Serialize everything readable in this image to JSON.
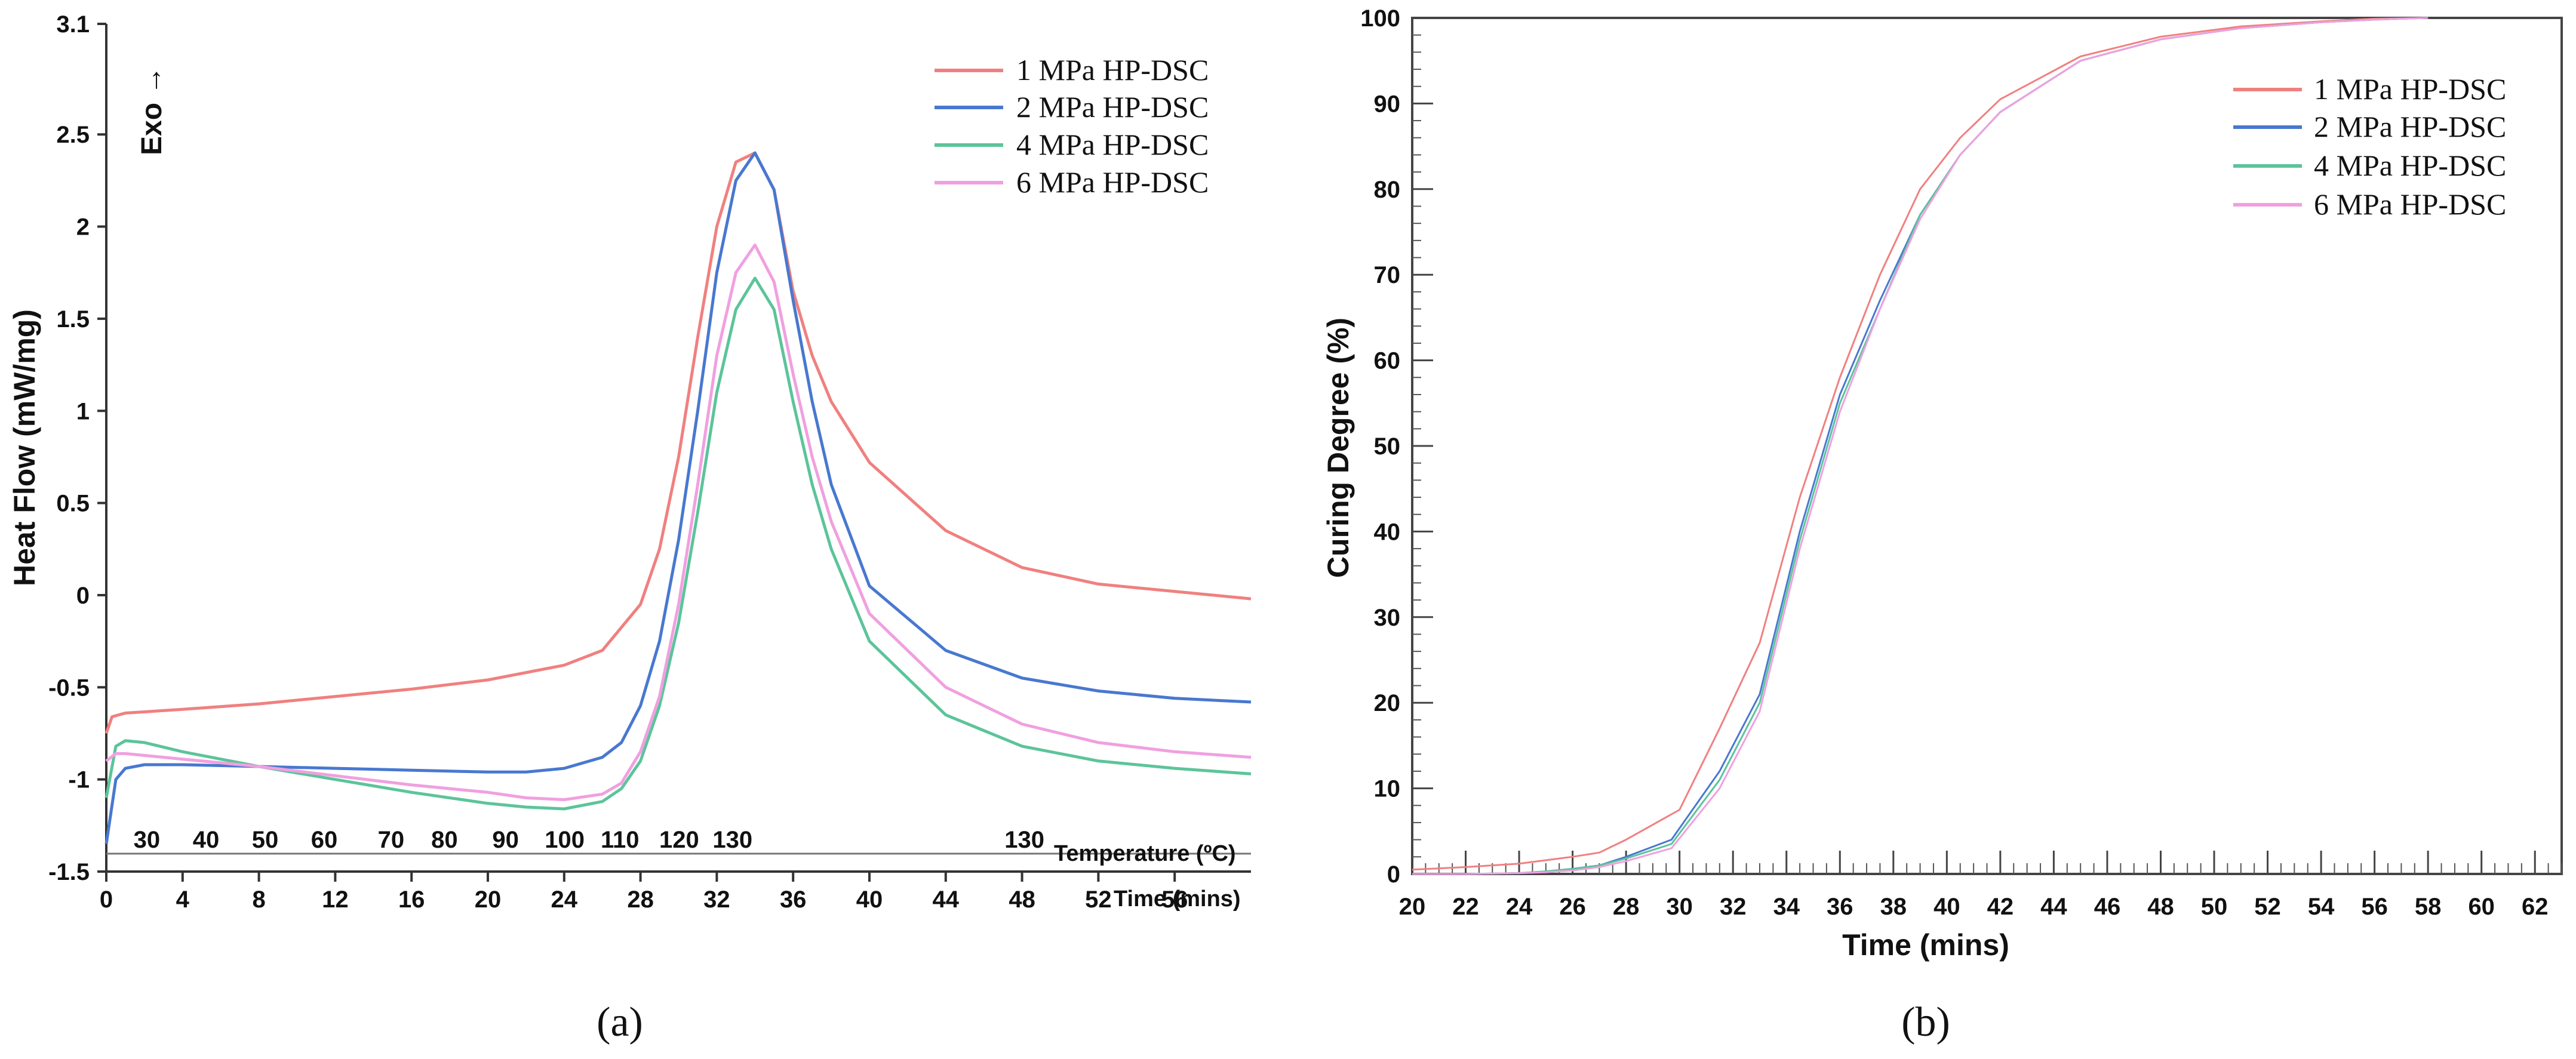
{
  "chart_data": [
    {
      "type": "line",
      "panel": "a",
      "caption": "(a)",
      "ylabel": "Heat  Flow (mW/mg)",
      "xlabel": "Time (mins)",
      "secondary_xlabel": "Temperature (ºC)",
      "exo_label": "Exo →",
      "xlim": [
        0,
        60
      ],
      "ylim": [
        -1.5,
        3.1
      ],
      "x_ticks": [
        0,
        4,
        8,
        12,
        16,
        20,
        24,
        28,
        32,
        36,
        40,
        44,
        48,
        52,
        56
      ],
      "x_tick_labels": [
        "0",
        "4",
        "8",
        "12",
        "16",
        "20",
        "24",
        "28",
        "32",
        "36",
        "40",
        "44",
        "48",
        "52",
        "56"
      ],
      "y_ticks": [
        -1.5,
        -1,
        -0.5,
        0,
        0.5,
        1,
        1.5,
        2,
        2.5,
        3.1
      ],
      "y_tick_labels": [
        "-1.5",
        "-1",
        "-0.5",
        "0",
        "0.5",
        "1",
        "1.5",
        "2",
        "2.5",
        "3.1"
      ],
      "temperature_ticks": [
        {
          "time": 1.5,
          "label": "30"
        },
        {
          "time": 4.6,
          "label": "40"
        },
        {
          "time": 7.7,
          "label": "50"
        },
        {
          "time": 10.8,
          "label": "60"
        },
        {
          "time": 14.3,
          "label": "70"
        },
        {
          "time": 17.1,
          "label": "80"
        },
        {
          "time": 20.3,
          "label": "90"
        },
        {
          "time": 23.4,
          "label": "100"
        },
        {
          "time": 26.3,
          "label": "110"
        },
        {
          "time": 29.4,
          "label": "120"
        },
        {
          "time": 32.2,
          "label": "130"
        },
        {
          "time": 47.5,
          "label": "130"
        }
      ],
      "series": [
        {
          "name": "1 MPa HP-DSC",
          "color": "#f08080",
          "x": [
            0,
            0.3,
            1,
            4,
            8,
            12,
            16,
            20,
            24,
            26,
            28,
            29,
            30,
            31,
            32,
            33,
            34,
            35,
            36,
            37,
            38,
            40,
            44,
            48,
            52,
            56,
            60
          ],
          "y": [
            -0.75,
            -0.66,
            -0.64,
            -0.62,
            -0.59,
            -0.55,
            -0.51,
            -0.46,
            -0.38,
            -0.3,
            -0.05,
            0.25,
            0.75,
            1.4,
            2.0,
            2.35,
            2.4,
            2.2,
            1.65,
            1.3,
            1.05,
            0.72,
            0.35,
            0.15,
            0.06,
            0.02,
            -0.02
          ]
        },
        {
          "name": "2 MPa HP-DSC",
          "color": "#4878d0",
          "x": [
            0,
            0.5,
            1,
            2,
            4,
            8,
            12,
            16,
            20,
            22,
            24,
            26,
            27,
            28,
            29,
            30,
            31,
            32,
            33,
            34,
            35,
            36,
            37,
            38,
            40,
            44,
            48,
            52,
            56,
            60
          ],
          "y": [
            -1.35,
            -1.0,
            -0.94,
            -0.92,
            -0.92,
            -0.93,
            -0.94,
            -0.95,
            -0.96,
            -0.96,
            -0.94,
            -0.88,
            -0.8,
            -0.6,
            -0.25,
            0.3,
            1.0,
            1.75,
            2.25,
            2.4,
            2.2,
            1.6,
            1.05,
            0.6,
            0.05,
            -0.3,
            -0.45,
            -0.52,
            -0.56,
            -0.58
          ]
        },
        {
          "name": "4 MPa HP-DSC",
          "color": "#5cc49a",
          "x": [
            0,
            0.5,
            1,
            2,
            4,
            8,
            12,
            16,
            20,
            22,
            24,
            26,
            27,
            28,
            29,
            30,
            31,
            32,
            33,
            34,
            35,
            36,
            37,
            38,
            40,
            44,
            48,
            52,
            56,
            60
          ],
          "y": [
            -1.1,
            -0.82,
            -0.79,
            -0.8,
            -0.85,
            -0.93,
            -1.0,
            -1.07,
            -1.13,
            -1.15,
            -1.16,
            -1.12,
            -1.05,
            -0.9,
            -0.6,
            -0.15,
            0.45,
            1.1,
            1.55,
            1.72,
            1.55,
            1.05,
            0.6,
            0.25,
            -0.25,
            -0.65,
            -0.82,
            -0.9,
            -0.94,
            -0.97
          ]
        },
        {
          "name": "6 MPa HP-DSC",
          "color": "#f0a0e0",
          "x": [
            0,
            0.5,
            1,
            2,
            4,
            8,
            12,
            16,
            20,
            22,
            24,
            26,
            27,
            28,
            29,
            30,
            31,
            32,
            33,
            34,
            35,
            36,
            37,
            38,
            40,
            44,
            48,
            52,
            56,
            60
          ],
          "y": [
            -0.9,
            -0.86,
            -0.86,
            -0.87,
            -0.89,
            -0.93,
            -0.98,
            -1.03,
            -1.07,
            -1.1,
            -1.11,
            -1.08,
            -1.02,
            -0.85,
            -0.55,
            -0.05,
            0.6,
            1.3,
            1.75,
            1.9,
            1.7,
            1.2,
            0.75,
            0.4,
            -0.1,
            -0.5,
            -0.7,
            -0.8,
            -0.85,
            -0.88
          ]
        }
      ]
    },
    {
      "type": "line",
      "panel": "b",
      "caption": "(b)",
      "ylabel": "Curing Degree (%)",
      "xlabel": "Time (mins)",
      "xlim": [
        20,
        63
      ],
      "ylim": [
        0,
        100
      ],
      "x_ticks": [
        20,
        22,
        24,
        26,
        28,
        30,
        32,
        34,
        36,
        38,
        40,
        42,
        44,
        46,
        48,
        50,
        52,
        54,
        56,
        58,
        60,
        62
      ],
      "x_tick_labels": [
        "20",
        "22",
        "24",
        "26",
        "28",
        "30",
        "32",
        "34",
        "36",
        "38",
        "40",
        "42",
        "44",
        "46",
        "48",
        "50",
        "52",
        "54",
        "56",
        "58",
        "60",
        "62"
      ],
      "y_ticks": [
        0,
        10,
        20,
        30,
        40,
        50,
        60,
        70,
        80,
        90,
        100
      ],
      "y_tick_labels": [
        "0",
        "10",
        "20",
        "30",
        "40",
        "50",
        "60",
        "70",
        "80",
        "90",
        "100"
      ],
      "series": [
        {
          "name": "1 MPa HP-DSC",
          "color": "#f08080",
          "x": [
            20,
            22,
            24,
            26,
            27,
            28,
            30,
            31.5,
            33,
            34.5,
            36,
            37.5,
            39,
            40.5,
            42,
            43.5,
            45,
            48,
            51,
            54,
            56,
            58
          ],
          "y": [
            0.5,
            0.8,
            1.2,
            2.0,
            2.5,
            4.0,
            7.5,
            17,
            27,
            44,
            58,
            70,
            80,
            86,
            90.5,
            93,
            95.5,
            97.8,
            99,
            99.6,
            99.9,
            100
          ]
        },
        {
          "name": "2 MPa HP-DSC",
          "color": "#4878d0",
          "x": [
            20,
            22,
            24,
            25,
            26,
            27,
            28,
            29.7,
            31.5,
            33,
            34.5,
            36,
            37.5,
            39,
            40.5,
            42,
            43.5,
            45,
            48,
            51,
            54,
            56,
            58
          ],
          "y": [
            0.0,
            0.0,
            0.1,
            0.3,
            0.6,
            1.0,
            2.0,
            4.0,
            12,
            21,
            40,
            56,
            67,
            77,
            84,
            89,
            92,
            95,
            97.5,
            98.8,
            99.5,
            99.8,
            100
          ]
        },
        {
          "name": "4 MPa HP-DSC",
          "color": "#5cc49a",
          "x": [
            20,
            22,
            24,
            25,
            26,
            27,
            28,
            29.7,
            31.5,
            33,
            34.5,
            36,
            37.5,
            39,
            40.5,
            42,
            43.5,
            45,
            48,
            51,
            54,
            56,
            58
          ],
          "y": [
            0.0,
            0.0,
            0.1,
            0.3,
            0.6,
            1.0,
            1.8,
            3.5,
            11,
            20,
            39,
            55,
            66,
            77,
            84,
            89,
            92,
            95,
            97.5,
            98.8,
            99.5,
            99.8,
            100
          ]
        },
        {
          "name": "6 MPa HP-DSC",
          "color": "#f0a0e0",
          "x": [
            20,
            22,
            24,
            25,
            26,
            27,
            28,
            29.7,
            31.5,
            33,
            34.5,
            36,
            37.5,
            39,
            40.5,
            42,
            43.5,
            45,
            48,
            51,
            54,
            56,
            58
          ],
          "y": [
            0.0,
            0.0,
            0.1,
            0.2,
            0.4,
            0.8,
            1.5,
            3.0,
            10,
            19,
            38,
            54,
            66,
            76.5,
            84,
            89,
            92,
            95,
            97.5,
            98.8,
            99.5,
            99.8,
            100
          ]
        }
      ]
    }
  ]
}
